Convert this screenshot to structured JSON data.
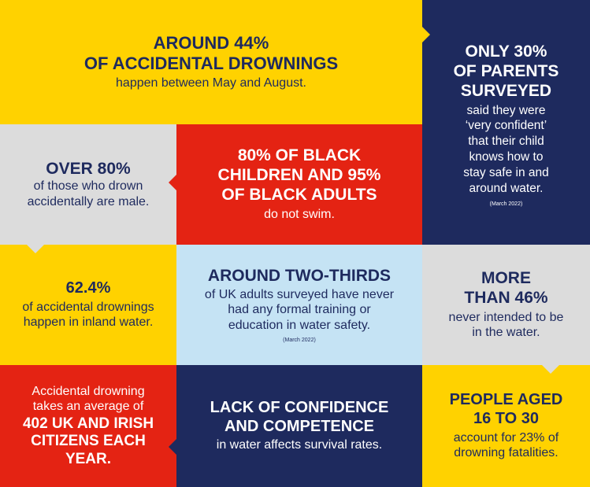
{
  "panels": {
    "p1": {
      "head1": "AROUND 44%",
      "head2": "OF ACCIDENTAL DROWNINGS",
      "body": "happen between May and August."
    },
    "p2": {
      "head1": "ONLY 30%",
      "head2": "OF PARENTS",
      "head3": "SURVEYED",
      "body1": "said they were",
      "body2": "‘very confident’",
      "body3": "that their child",
      "body4": "knows how to",
      "body5": "stay safe in and",
      "body6": "around water.",
      "note": "(March 2022)"
    },
    "p3": {
      "head": "OVER 80%",
      "body1": "of those who drown",
      "body2": "accidentally are male."
    },
    "p4": {
      "head1": "80% OF BLACK",
      "head2": "CHILDREN AND 95%",
      "head3": "OF BLACK ADULTS",
      "body": "do not swim."
    },
    "p5": {
      "head": "62.4%",
      "body1": "of accidental drownings",
      "body2": "happen in inland water."
    },
    "p6": {
      "head": "AROUND TWO-THIRDS",
      "body1": "of UK adults surveyed have never",
      "body2": "had any formal training or",
      "body3": "education in water safety.",
      "note": "(March 2022)"
    },
    "p7": {
      "head1": "MORE",
      "head2": "THAN 46%",
      "body1": "never intended to be",
      "body2": "in the water."
    },
    "p8": {
      "body1": "Accidental drowning",
      "body2": "takes an average of",
      "head1": "402 UK AND IRISH",
      "head2": "CITIZENS EACH",
      "head3": "YEAR."
    },
    "p9": {
      "head1": "LACK OF CONFIDENCE",
      "head2": "AND COMPETENCE",
      "body": "in water affects survival rates."
    },
    "p10": {
      "head1": "PEOPLE AGED",
      "head2": "16 TO 30",
      "body1": "account for 23% of",
      "body2": "drowning fatalities."
    }
  },
  "colors": {
    "yellow": "#ffd200",
    "navy": "#1e2a5e",
    "red": "#e42313",
    "grey": "#dcdcdc",
    "light_blue": "#c5e3f4"
  }
}
